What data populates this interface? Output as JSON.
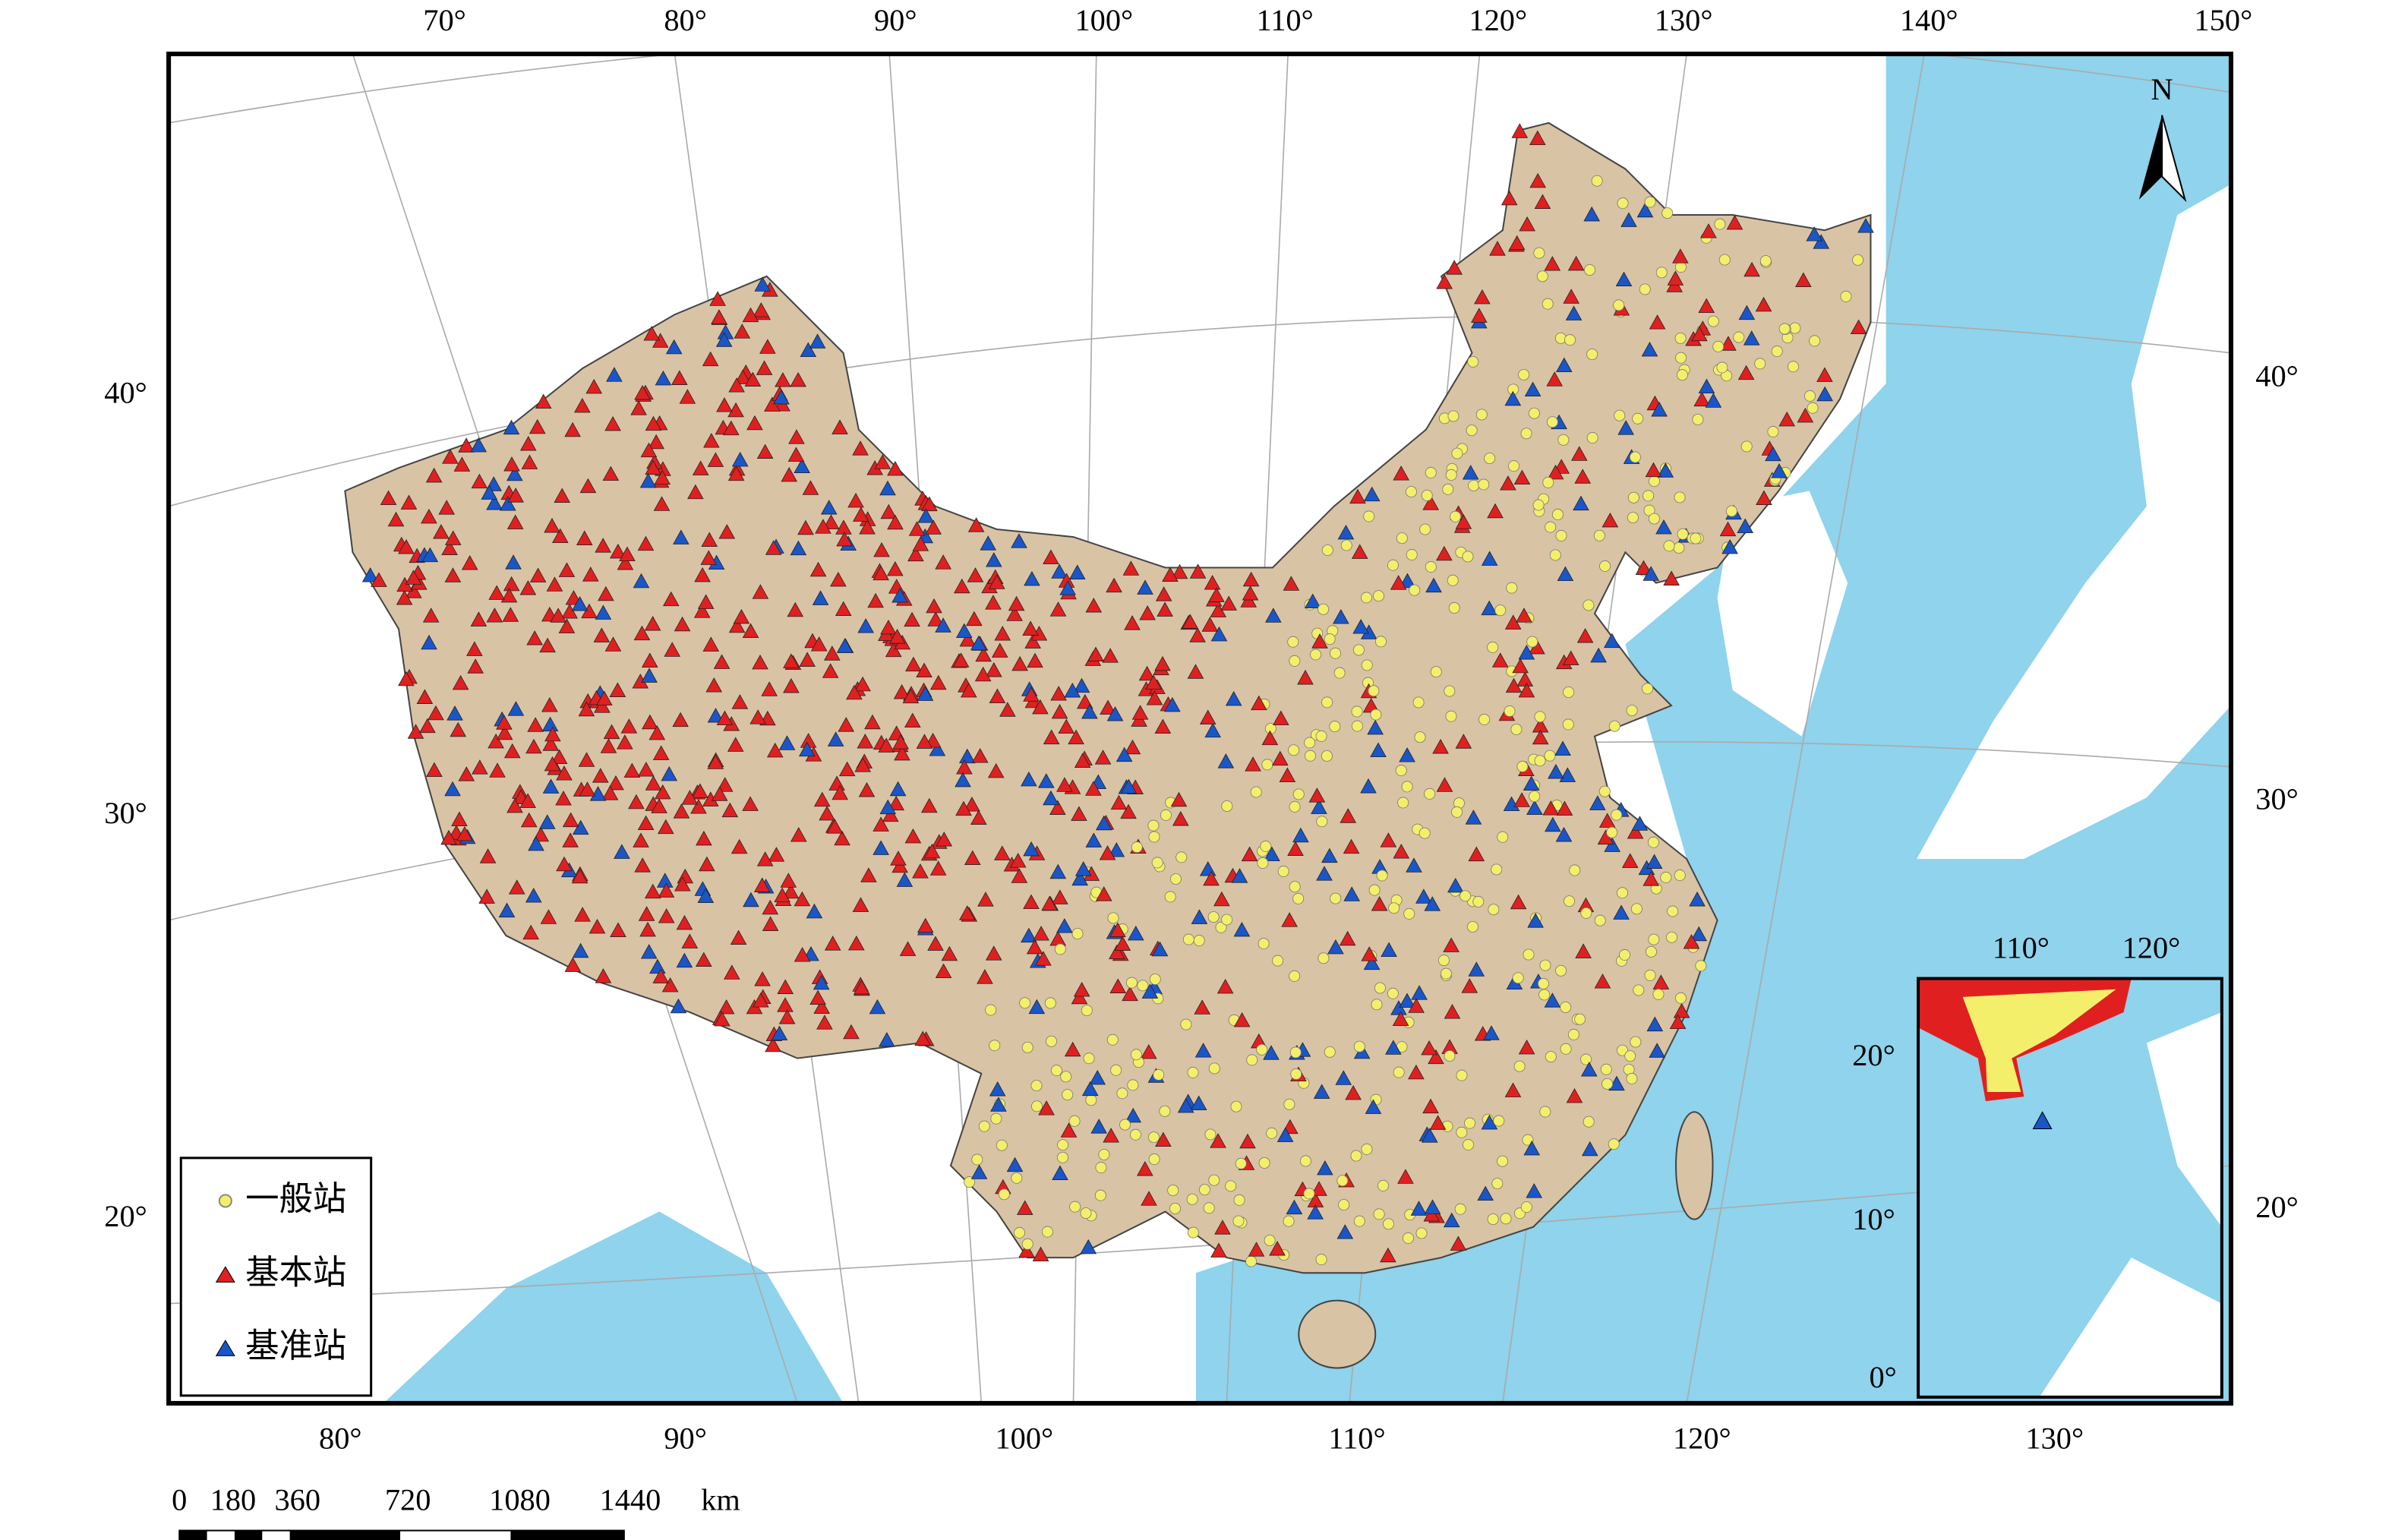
{
  "map": {
    "graticule_labels": {
      "top": [
        "70°",
        "80°",
        "90°",
        "100°",
        "110°",
        "120°",
        "130°",
        "140°",
        "150°"
      ],
      "bottom": [
        "80°",
        "90°",
        "100°",
        "110°",
        "120°",
        "130°"
      ],
      "left": [
        "40°",
        "30°",
        "20°"
      ],
      "right": [
        "40°",
        "30°",
        "20°"
      ]
    },
    "inset_labels": {
      "top": [
        "110°",
        "120°"
      ],
      "left": [
        "20°",
        "10°",
        "0°"
      ]
    },
    "legend": [
      "一般站",
      "基本站",
      "基准站"
    ],
    "scale_bar": {
      "labels": [
        "0",
        "180",
        "360",
        "720",
        "1080",
        "1440"
      ],
      "unit": "km"
    },
    "north": "N"
  }
}
